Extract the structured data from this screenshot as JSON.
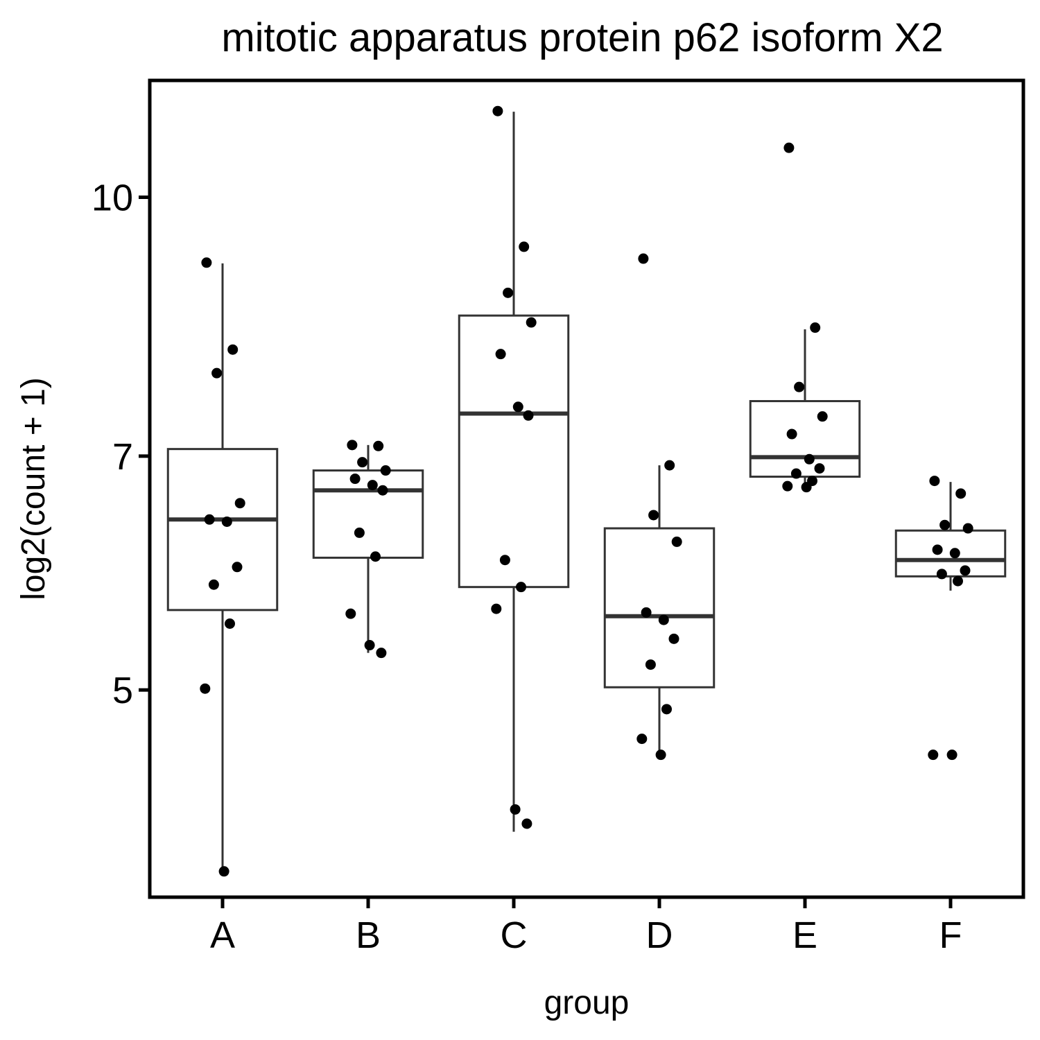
{
  "chart_data": {
    "type": "boxplot",
    "title": "mitotic apparatus protein p62 isoform X2",
    "xlabel": "group",
    "ylabel": "log2(count + 1)",
    "scale": "log2",
    "ylim": [
      3.65,
      11.7
    ],
    "yticks": [
      5,
      7,
      10
    ],
    "ytick_labels": [
      "5",
      "7",
      "10"
    ],
    "categories": [
      "A",
      "B",
      "C",
      "D",
      "E",
      "F"
    ],
    "boxes": [
      {
        "group": "A",
        "whisker_low": 3.8,
        "q1": 5.62,
        "median": 6.4,
        "q3": 7.07,
        "whisker_high": 9.14
      },
      {
        "group": "B",
        "whisker_low": 5.28,
        "q1": 6.06,
        "median": 6.67,
        "q3": 6.86,
        "whisker_high": 7.11
      },
      {
        "group": "C",
        "whisker_low": 4.04,
        "q1": 5.81,
        "median": 7.43,
        "q3": 8.51,
        "whisker_high": 11.22
      },
      {
        "group": "D",
        "whisker_low": 4.54,
        "q1": 5.02,
        "median": 5.57,
        "q3": 6.32,
        "whisker_high": 6.91
      },
      {
        "group": "E",
        "whisker_low": 6.73,
        "q1": 6.8,
        "median": 6.99,
        "q3": 7.56,
        "whisker_high": 8.35
      },
      {
        "group": "F",
        "whisker_low": 5.78,
        "q1": 5.9,
        "median": 6.04,
        "q3": 6.3,
        "whisker_high": 6.75
      }
    ],
    "points": [
      {
        "group": "A",
        "values": [
          9.15,
          8.12,
          7.86,
          6.55,
          6.4,
          6.38,
          5.98,
          5.83,
          5.51,
          5.01,
          3.8
        ]
      },
      {
        "group": "B",
        "values": [
          7.11,
          7.1,
          6.94,
          6.86,
          6.78,
          6.72,
          6.67,
          6.28,
          6.07,
          5.59,
          5.34,
          5.28
        ]
      },
      {
        "group": "C",
        "values": [
          11.23,
          9.35,
          8.78,
          8.43,
          8.07,
          7.5,
          7.41,
          6.04,
          5.81,
          5.63,
          4.18,
          4.09
        ]
      },
      {
        "group": "D",
        "values": [
          9.2,
          6.91,
          6.44,
          6.2,
          5.6,
          5.54,
          5.39,
          5.19,
          4.86,
          4.65,
          4.54
        ]
      },
      {
        "group": "E",
        "values": [
          10.69,
          8.37,
          7.71,
          7.4,
          7.22,
          6.97,
          6.88,
          6.83,
          6.76,
          6.71,
          6.7
        ]
      },
      {
        "group": "F",
        "values": [
          6.76,
          6.64,
          6.35,
          6.32,
          6.13,
          6.1,
          5.95,
          5.92,
          5.86,
          4.54,
          4.54
        ]
      }
    ],
    "grid": false,
    "legend": "none",
    "colors": {
      "box_stroke": "#333333",
      "point": "#000000",
      "axis": "#000000",
      "background": "#ffffff"
    }
  }
}
